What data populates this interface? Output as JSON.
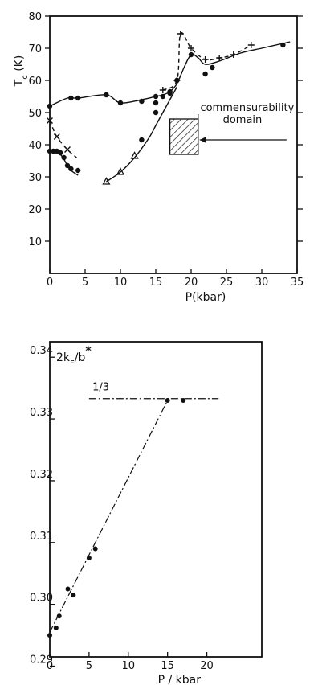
{
  "chart_data": [
    {
      "type": "scatter",
      "xlabel": "P(kbar)",
      "ylabel_main": "T",
      "ylabel_sub": "c",
      "ylabel_unit": "(K)",
      "xlim": [
        0,
        35
      ],
      "ylim": [
        0,
        80
      ],
      "x_ticks": [
        0,
        5,
        10,
        15,
        20,
        25,
        30,
        35
      ],
      "y_ticks": [
        10,
        20,
        30,
        40,
        50,
        60,
        70,
        80
      ],
      "annotation": "commensurability domain",
      "annotation_lines": [
        "commensurability",
        "domain"
      ],
      "hatched_region": {
        "x": [
          17,
          21
        ],
        "y": [
          37,
          48
        ]
      },
      "series": [
        {
          "marker": "dot",
          "line": "solid",
          "x": [
            0,
            2.5,
            4,
            8,
            10,
            13,
            15,
            16,
            17,
            18,
            19,
            20,
            21,
            22,
            24,
            27,
            30,
            33,
            34
          ],
          "y": [
            52,
            54.5,
            54.5,
            55.5,
            53,
            54,
            55,
            55.5,
            56.5,
            59,
            64,
            68,
            67,
            65,
            66,
            68.5,
            70,
            71.5,
            72
          ],
          "points": {
            "x": [
              0,
              3,
              4,
              8,
              10,
              13,
              15,
              16,
              17,
              18,
              20,
              22,
              23,
              33
            ],
            "y": [
              52,
              54.5,
              54.5,
              55.5,
              53,
              53.5,
              55,
              55,
              56,
              60,
              68,
              62,
              64,
              71
            ]
          }
        },
        {
          "marker": "plus",
          "line": "dashed",
          "x": [
            16,
            18,
            18.5,
            20,
            22,
            24,
            26,
            28.5
          ],
          "y": [
            57,
            60,
            74.5,
            70,
            66.5,
            67,
            68,
            71
          ]
        },
        {
          "marker": "dot",
          "line": "solid",
          "x": [
            0,
            0.5,
            1,
            1.5,
            2,
            2.5,
            3,
            4
          ],
          "y": [
            38,
            38,
            38,
            37,
            35.5,
            33.5,
            32,
            30.5
          ],
          "points": {
            "x": [
              0,
              0.5,
              1,
              1.5,
              2,
              2.5,
              3,
              4
            ],
            "y": [
              38,
              38,
              38,
              37.5,
              36,
              33.5,
              32.5,
              32
            ]
          }
        },
        {
          "marker": "cross",
          "line": "dashed",
          "x": [
            0,
            1,
            2.5,
            3.8
          ],
          "y": [
            47.5,
            42.5,
            38.5,
            36
          ],
          "points": {
            "x": [
              0,
              1,
              2.5
            ],
            "y": [
              47.5,
              42.5,
              38.5
            ]
          }
        },
        {
          "marker": "triangle_and_dot",
          "line": "solid",
          "x": [
            8,
            10,
            12,
            14,
            15,
            16,
            17,
            18
          ],
          "y": [
            28.5,
            31.5,
            36,
            42,
            46,
            50,
            54,
            58
          ],
          "triangles": {
            "x": [
              8,
              10,
              12
            ],
            "y": [
              28.5,
              31.5,
              36.5
            ]
          },
          "dots": {
            "x": [
              13,
              15,
              15,
              17,
              18
            ],
            "y": [
              41.5,
              50,
              53,
              56.5,
              60
            ]
          }
        }
      ]
    },
    {
      "type": "scatter",
      "ylabel_main": "2k",
      "ylabel_sub": "F",
      "ylabel_rest": "/b",
      "ylabel_sup": "*",
      "xlabel": "P / kbar",
      "xlim": [
        0,
        27
      ],
      "ylim": [
        0.2915,
        0.3425
      ],
      "x_ticks": [
        0,
        5,
        10,
        15,
        20
      ],
      "y_ticks": [
        0.29,
        0.3,
        0.31,
        0.32,
        0.33,
        0.34
      ],
      "y_tick_labels": [
        "0.29",
        "0.30",
        "0.31",
        "0.32",
        "0.33",
        "0.34"
      ],
      "reference_line": {
        "label": "1/3",
        "value": 0.3333,
        "x_range": [
          5,
          21.5
        ]
      },
      "series": [
        {
          "marker": "dot",
          "line": "dash-dot",
          "x": [
            0,
            0.8,
            1.2,
            2.3,
            3,
            5,
            5.8,
            15,
            17
          ],
          "y": [
            0.295,
            0.2962,
            0.2981,
            0.3025,
            0.3015,
            0.3075,
            0.309,
            0.333,
            0.333
          ],
          "fit_line": {
            "x": [
              0,
              15
            ],
            "y": [
              0.2955,
              0.333
            ]
          }
        }
      ]
    }
  ]
}
